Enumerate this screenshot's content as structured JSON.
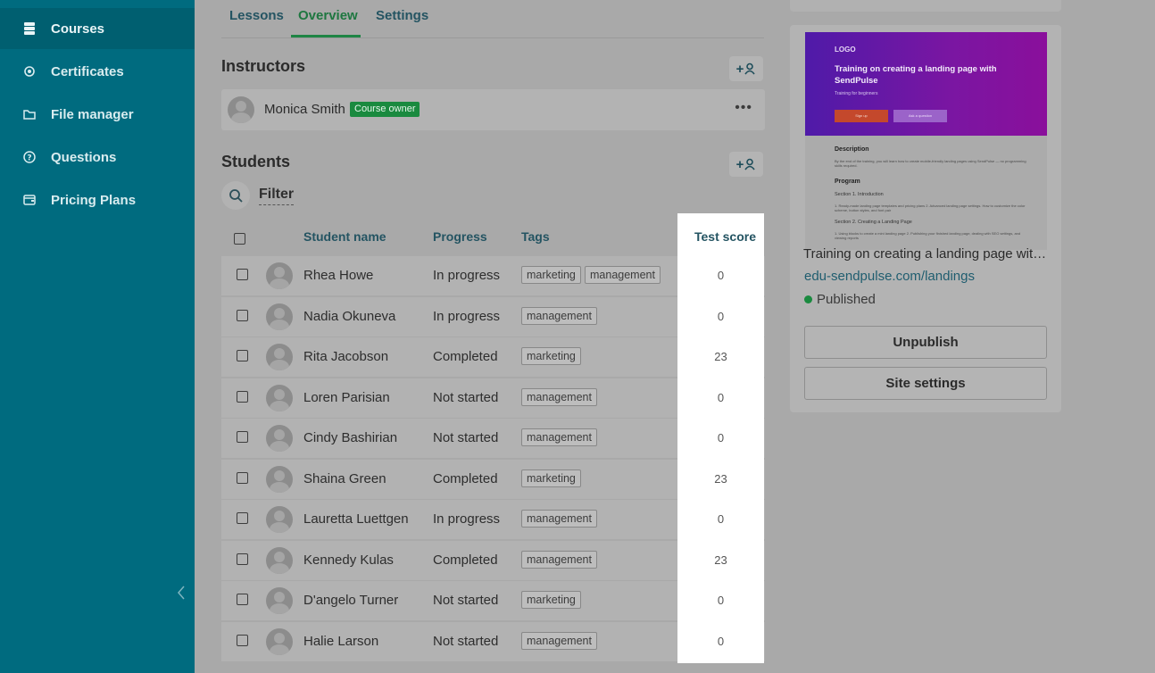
{
  "sidebar": {
    "items": [
      {
        "label": "Courses",
        "icon": "courses-icon",
        "active": true
      },
      {
        "label": "Certificates",
        "icon": "certificate-icon",
        "active": false
      },
      {
        "label": "File manager",
        "icon": "folder-icon",
        "active": false
      },
      {
        "label": "Questions",
        "icon": "question-icon",
        "active": false
      },
      {
        "label": "Pricing Plans",
        "icon": "wallet-icon",
        "active": false
      }
    ],
    "collapse_icon": "chevron-left-icon"
  },
  "tabs": [
    {
      "label": "Lessons"
    },
    {
      "label": "Overview",
      "active": true
    },
    {
      "label": "Settings"
    }
  ],
  "instructors": {
    "title": "Instructors",
    "add_label": "+",
    "list": [
      {
        "name": "Monica Smith",
        "badge": "Course owner",
        "menu": "•••"
      }
    ]
  },
  "students": {
    "title": "Students",
    "add_label": "+",
    "filter_label": "Filter",
    "columns": {
      "name": "Student name",
      "progress": "Progress",
      "tags": "Tags",
      "score": "Test score"
    },
    "rows": [
      {
        "name": "Rhea Howe",
        "progress": "In progress",
        "tags": [
          "marketing",
          "management"
        ],
        "score": "0"
      },
      {
        "name": "Nadia Okuneva",
        "progress": "In progress",
        "tags": [
          "management"
        ],
        "score": "0"
      },
      {
        "name": "Rita Jacobson",
        "progress": "Completed",
        "tags": [
          "marketing"
        ],
        "score": "23"
      },
      {
        "name": "Loren Parisian",
        "progress": "Not started",
        "tags": [
          "management"
        ],
        "score": "0"
      },
      {
        "name": "Cindy Bashirian",
        "progress": "Not started",
        "tags": [
          "management"
        ],
        "score": "0"
      },
      {
        "name": "Shaina Green",
        "progress": "Completed",
        "tags": [
          "marketing"
        ],
        "score": "23"
      },
      {
        "name": "Lauretta Luettgen",
        "progress": "In progress",
        "tags": [
          "management"
        ],
        "score": "0"
      },
      {
        "name": "Kennedy Kulas",
        "progress": "Completed",
        "tags": [
          "management"
        ],
        "score": "23"
      },
      {
        "name": "D'angelo Turner",
        "progress": "Not started",
        "tags": [
          "marketing"
        ],
        "score": "0"
      },
      {
        "name": "Halie Larson",
        "progress": "Not started",
        "tags": [
          "management"
        ],
        "score": "0"
      }
    ]
  },
  "preview": {
    "thumb": {
      "logo": "LOGO",
      "title": "Training on creating a landing page with SendPulse",
      "subtitle": "Training for beginners",
      "btn1": "Sign up",
      "btn2": "Ask a question",
      "desc_heading": "Description",
      "desc_text": "By the end of the training, you will learn how to create mobile-friendly landing pages using SendPulse — no programming skills required.",
      "program_heading": "Program",
      "section1": "Section 1. Introduction",
      "section1_text": "1. Ready-made landing page templates and pricing plans 2. Advanced landing page settings. How to customize the color scheme, button styles, and font pair",
      "section2": "Section 2. Creating a Landing Page",
      "section2_text": "1. Using blocks to create a mini landing page 2. Publishing your finished landing page, dealing with SEO settings, and viewing reports"
    },
    "site_title": "Training on creating a landing page with SendPulse",
    "site_link": "edu-sendpulse.com/landings",
    "status": "Published",
    "unpublish_label": "Unpublish",
    "settings_label": "Site settings"
  },
  "colors": {
    "sidebar": "#006b7f",
    "accent": "#1f8545",
    "overlay": "#a9a9a9"
  }
}
